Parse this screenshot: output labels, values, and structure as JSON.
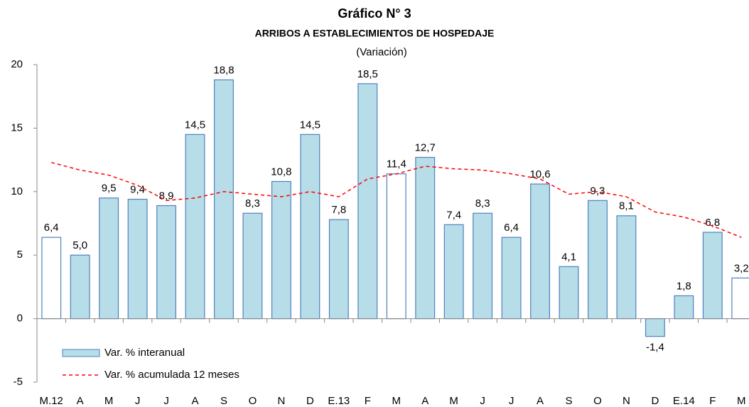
{
  "chart_data": {
    "type": "bar",
    "title": "Gráfico N° 3",
    "subtitle": "ARRIBOS A ESTABLECIMIENTOS DE HOSPEDAJE",
    "unit_note": "(Variación)",
    "categories": [
      "M.12",
      "A",
      "M",
      "J",
      "J",
      "A",
      "S",
      "O",
      "N",
      "D",
      "E.13",
      "F",
      "M",
      "A",
      "M",
      "J",
      "J",
      "A",
      "S",
      "O",
      "N",
      "D",
      "E.14",
      "F",
      "M"
    ],
    "ylim": [
      -5,
      20
    ],
    "yticks": [
      -5,
      0,
      5,
      10,
      15,
      20
    ],
    "grid": false,
    "legend": "lower left",
    "series": [
      {
        "name": "Var. % interanual",
        "type": "bar",
        "color": "#b7dde8",
        "edge_color": "#4f81bd",
        "bar_colors": [
          "#ffffff",
          "#b7dde8",
          "#b7dde8",
          "#b7dde8",
          "#b7dde8",
          "#b7dde8",
          "#b7dde8",
          "#b7dde8",
          "#b7dde8",
          "#b7dde8",
          "#b7dde8",
          "#b7dde8",
          "#ffffff",
          "#b7dde8",
          "#b7dde8",
          "#b7dde8",
          "#b7dde8",
          "#b7dde8",
          "#b7dde8",
          "#b7dde8",
          "#b7dde8",
          "#b7dde8",
          "#b7dde8",
          "#b7dde8",
          "#ffffff"
        ],
        "values": [
          6.4,
          5.0,
          9.5,
          9.4,
          8.9,
          14.5,
          18.8,
          8.3,
          10.8,
          14.5,
          7.8,
          18.5,
          11.4,
          12.7,
          7.4,
          8.3,
          6.4,
          10.6,
          4.1,
          9.3,
          8.1,
          -1.4,
          1.8,
          6.8,
          3.2
        ],
        "value_labels": [
          "6,4",
          "5,0",
          "9,5",
          "9,4",
          "8,9",
          "14,5",
          "18,8",
          "8,3",
          "10,8",
          "14,5",
          "7,8",
          "18,5",
          "11,4",
          "12,7",
          "7,4",
          "8,3",
          "6,4",
          "10,6",
          "4,1",
          "9,3",
          "8,1",
          "-1,4",
          "1,8",
          "6,8",
          "3,2"
        ]
      },
      {
        "name": "Var. % acumulada 12 meses",
        "type": "line",
        "color": "#ff0000",
        "dashed": true,
        "values": [
          12.3,
          11.7,
          11.3,
          10.5,
          9.3,
          9.5,
          10.0,
          9.8,
          9.6,
          10.0,
          9.6,
          11.0,
          11.4,
          12.0,
          11.8,
          11.7,
          11.4,
          11.0,
          9.8,
          10.0,
          9.6,
          8.4,
          8.0,
          7.3,
          6.4
        ]
      }
    ]
  }
}
